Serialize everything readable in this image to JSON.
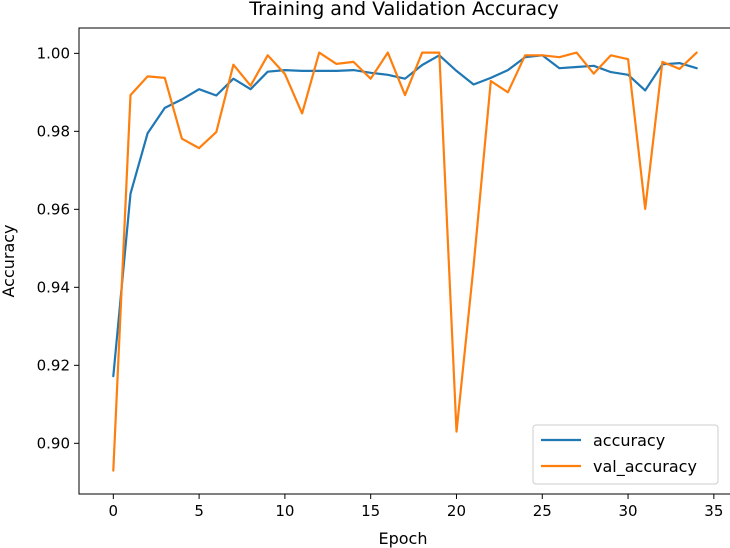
{
  "chart_data": {
    "type": "line",
    "title": "Training and Validation Accuracy",
    "xlabel": "Epoch",
    "ylabel": "Accuracy",
    "xlim": [
      -2,
      36
    ],
    "ylim": [
      0.887,
      1.0065
    ],
    "xticks": [
      0,
      5,
      10,
      15,
      20,
      25,
      30,
      35
    ],
    "xtick_labels": [
      "0",
      "5",
      "10",
      "15",
      "20",
      "25",
      "30",
      "35"
    ],
    "yticks": [
      0.9,
      0.92,
      0.94,
      0.96,
      0.98,
      1.0
    ],
    "ytick_labels": [
      "0.90",
      "0.92",
      "0.94",
      "0.96",
      "0.98",
      "1.00"
    ],
    "grid": false,
    "legend_position": "lower-right",
    "x": [
      0,
      1,
      2,
      3,
      4,
      5,
      6,
      7,
      8,
      9,
      10,
      11,
      12,
      13,
      14,
      15,
      16,
      17,
      18,
      19,
      20,
      21,
      22,
      23,
      24,
      25,
      26,
      27,
      28,
      29,
      30,
      31,
      32,
      33,
      34
    ],
    "series": [
      {
        "name": "accuracy",
        "color": "#1f77b4",
        "values": [
          0.9172,
          0.964,
          0.9795,
          0.986,
          0.9882,
          0.9908,
          0.9892,
          0.9935,
          0.9908,
          0.9953,
          0.9957,
          0.9955,
          0.9955,
          0.9955,
          0.9957,
          0.995,
          0.9945,
          0.9935,
          0.997,
          0.9995,
          0.9955,
          0.992,
          0.9937,
          0.9957,
          0.999,
          0.9995,
          0.9962,
          0.9965,
          0.9968,
          0.9952,
          0.9945,
          0.9905,
          0.9972,
          0.9975,
          0.9962
        ]
      },
      {
        "name": "val_accuracy",
        "color": "#ff7f0e",
        "values": [
          0.893,
          0.9893,
          0.9941,
          0.9937,
          0.9781,
          0.9757,
          0.9798,
          0.9971,
          0.9917,
          0.9995,
          0.9947,
          0.9846,
          1.0002,
          0.9973,
          0.9978,
          0.9935,
          1.0002,
          0.9893,
          1.0002,
          1.0002,
          0.903,
          0.9455,
          0.9929,
          0.99,
          0.9995,
          0.9995,
          0.999,
          1.0002,
          0.9948,
          0.9995,
          0.9985,
          0.9601,
          0.9978,
          0.996,
          1.0002
        ]
      }
    ]
  }
}
